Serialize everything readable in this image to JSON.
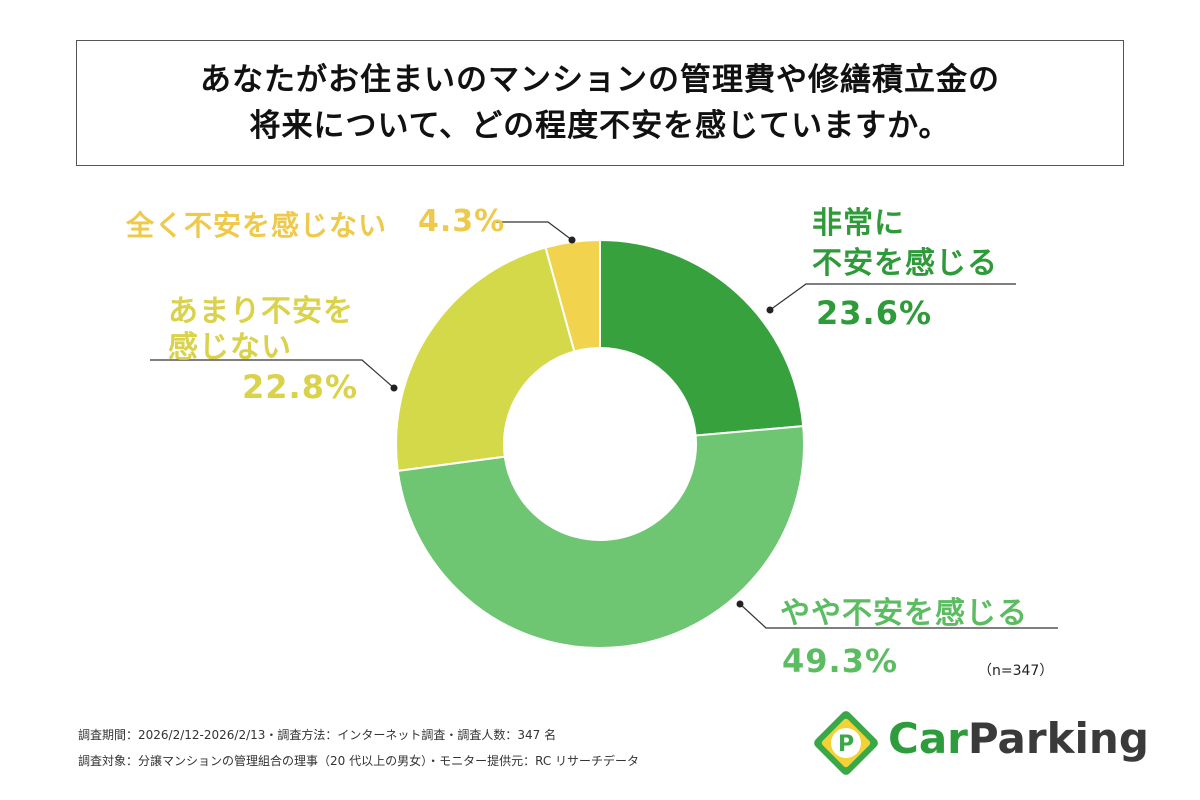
{
  "title": {
    "line1": "あなたがお住まいのマンションの管理費や修繕積立金の",
    "line2": "将来について、どの程度不安を感じていますか。"
  },
  "chart_data": {
    "type": "pie",
    "variant": "donut",
    "title": "あなたがお住まいのマンションの管理費や修繕積立金の将来について、どの程度不安を感じていますか。",
    "start": "12 o'clock, clockwise",
    "slices": [
      {
        "label": "非常に不安を感じる",
        "label_lines": [
          "非常に",
          "不安を感じる"
        ],
        "value": 23.6,
        "value_label": "23.6%",
        "color": "#37a13e"
      },
      {
        "label": "やや不安を感じる",
        "label_lines": [
          "やや不安を感じる"
        ],
        "value": 49.3,
        "value_label": "49.3%",
        "color": "#6ec673"
      },
      {
        "label": "あまり不安を感じない",
        "label_lines": [
          "あまり不安を",
          "感じない"
        ],
        "value": 22.8,
        "value_label": "22.8%",
        "color": "#d4d94a"
      },
      {
        "label": "全く不安を感じない",
        "label_lines": [
          "全く不安を感じない"
        ],
        "value": 4.3,
        "value_label": "4.3%",
        "color": "#f2d34d"
      }
    ],
    "label_colors": {
      "非常に不安を感じる": "#2f9a3a",
      "やや不安を感じる": "#5cbc62",
      "あまり不安を感じない": "#d9d24a",
      "全く不安を感じない": "#eec94a"
    }
  },
  "sample_size": "（n=347）",
  "footnotes": {
    "line1": "調査期間：2026/2/12-2026/2/13・調査方法：インターネット調査・調査人数：347 名",
    "line2": "調査対象：分譲マンションの管理組合の理事（20 代以上の男女）・モニター提供元：RC リサーチデータ"
  },
  "logo": {
    "part1": "Car",
    "part2": "Parking",
    "emblem_letter": "P"
  }
}
